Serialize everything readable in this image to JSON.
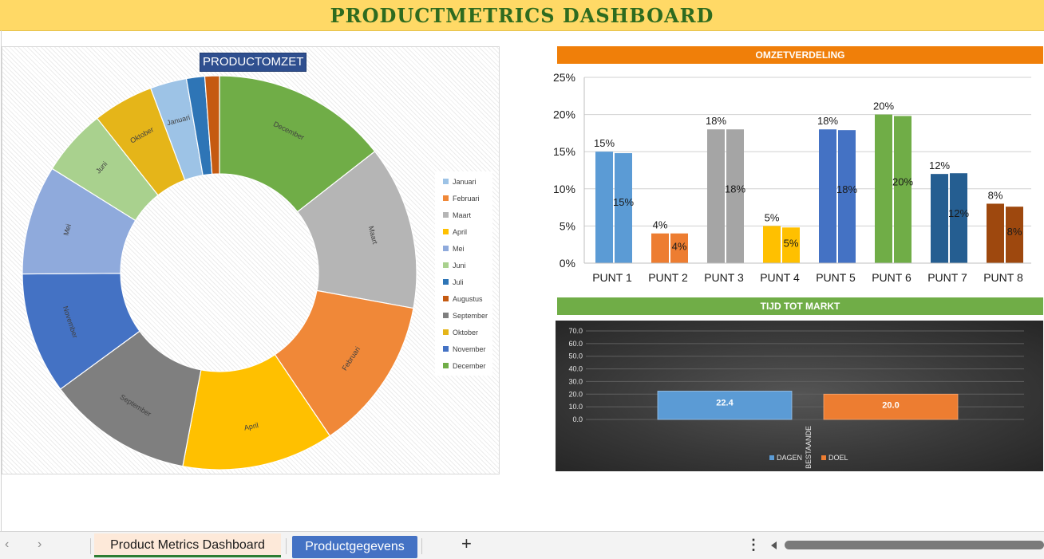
{
  "page": {
    "title": "PRODUCTMETRICS DASHBOARD"
  },
  "donut": {
    "title": "PRODUCTOMZET"
  },
  "bar": {
    "title": "OMZETVERDELING",
    "title_color": "#f07f09"
  },
  "market": {
    "title": "TIJD TOT MARKT",
    "title_color": "#70ad47"
  },
  "tabs": {
    "active": "Product Metrics Dashboard",
    "other": "Productgegevens",
    "add": "+",
    "more": "⋮",
    "prev": "‹",
    "next": "›"
  },
  "chart_data": [
    {
      "type": "pie",
      "variant": "donut",
      "title": "PRODUCTOMZET",
      "categories": [
        "December",
        "Maart",
        "Februari",
        "April",
        "September",
        "November",
        "Mei",
        "Juni",
        "Oktober",
        "Januari",
        "Juli",
        "Augustus"
      ],
      "values": [
        14.5,
        13.5,
        12.7,
        12.5,
        12.0,
        10.0,
        9.0,
        5.5,
        5.0,
        3.0,
        1.5,
        1.2
      ],
      "colors": [
        "#70ad47",
        "#b5b5b5",
        "#f08838",
        "#ffc000",
        "#7f7f7f",
        "#4472c4",
        "#8faadc",
        "#a9d18e",
        "#e5b519",
        "#9dc3e6",
        "#2e75b6",
        "#c55a11"
      ],
      "legend": [
        "Januari",
        "Februari",
        "Maart",
        "April",
        "Mei",
        "Juni",
        "Juli",
        "Augustus",
        "September",
        "Oktober",
        "November",
        "December"
      ],
      "legend_colors": [
        "#9dc3e6",
        "#f08838",
        "#b5b5b5",
        "#ffc000",
        "#8faadc",
        "#a9d18e",
        "#2e75b6",
        "#c55a11",
        "#7f7f7f",
        "#e5b519",
        "#4472c4",
        "#70ad47"
      ],
      "legend_position": "right"
    },
    {
      "type": "bar",
      "title": "OMZETVERDELING",
      "categories": [
        "PUNT 1",
        "PUNT 2",
        "PUNT 3",
        "PUNT 4",
        "PUNT 5",
        "PUNT 6",
        "PUNT 7",
        "PUNT 8"
      ],
      "series": [
        {
          "values": [
            15,
            4,
            18,
            5,
            18,
            20,
            12,
            8
          ],
          "labels": [
            "15%",
            "4%",
            "18%",
            "5%",
            "18%",
            "20%",
            "12%",
            "8%"
          ]
        },
        {
          "values": [
            14.8,
            4,
            18,
            4.8,
            17.9,
            19.8,
            12.1,
            7.6
          ],
          "labels": [
            "15%",
            "4%",
            "18%",
            "5%",
            "18%",
            "20%",
            "12%",
            "8%"
          ]
        }
      ],
      "colors": [
        "#5b9bd5",
        "#ed7d31",
        "#a5a5a5",
        "#ffc000",
        "#4472c4",
        "#70ad47",
        "#255e91",
        "#9e480e"
      ],
      "y_ticks": [
        "0%",
        "5%",
        "10%",
        "15%",
        "20%",
        "25%"
      ],
      "ylim": [
        0,
        25
      ],
      "grid": true
    },
    {
      "type": "bar",
      "title": "TIJD TOT MARKT",
      "categories": [
        "BESTAANDE"
      ],
      "series": [
        {
          "name": "DAGEN",
          "values": [
            22.4
          ],
          "label": "22.4",
          "color": "#5b9bd5"
        },
        {
          "name": "DOEL",
          "values": [
            20.0
          ],
          "label": "20.0",
          "color": "#ed7d31"
        }
      ],
      "y_ticks": [
        "0.0",
        "10.0",
        "20.0",
        "30.0",
        "40.0",
        "50.0",
        "60.0",
        "70.0"
      ],
      "ylim": [
        0,
        70
      ],
      "grid": true,
      "legend_position": "bottom"
    }
  ]
}
